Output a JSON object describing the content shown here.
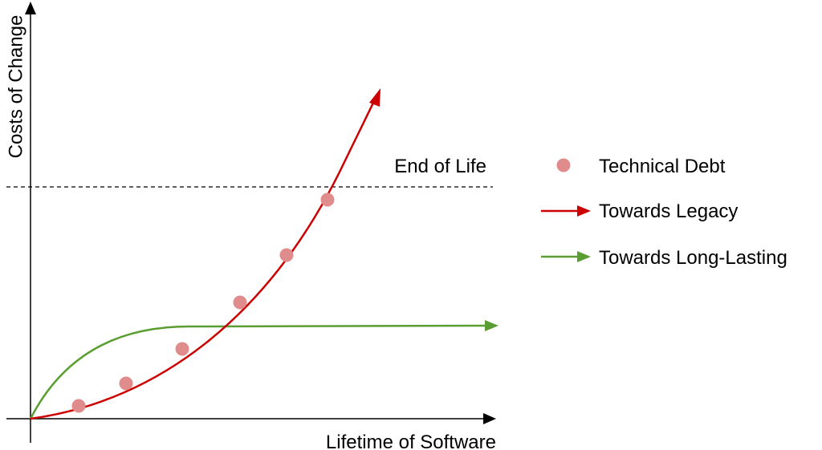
{
  "diagram": {
    "y_axis_label": "Costs of Change",
    "x_axis_label": "Lifetime of Software",
    "threshold_label": "End of Life"
  },
  "legend": {
    "technical_debt": "Technical Debt",
    "towards_legacy": "Towards Legacy",
    "towards_long_lasting": "Towards Long-Lasting"
  },
  "colors": {
    "legacy": "#cc0000",
    "long_lasting": "#5a9e32",
    "debt_marker": "#e08c8c",
    "axis": "#000000"
  },
  "technical_debt_markers": 7
}
